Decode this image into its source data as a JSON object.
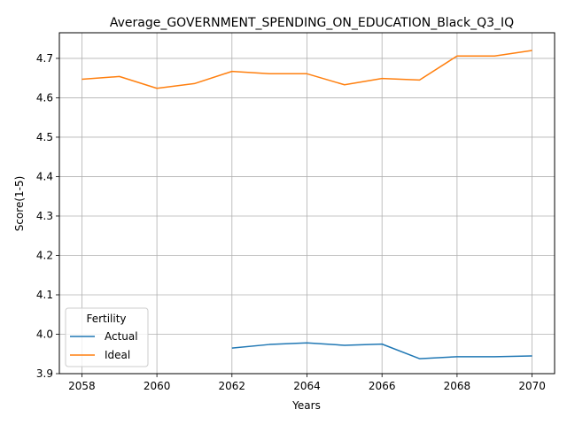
{
  "chart_data": {
    "type": "line",
    "title": "Average_GOVERNMENT_SPENDING_ON_EDUCATION_Black_Q3_IQ",
    "xlabel": "Years",
    "ylabel": "Score(1-5)",
    "xlim": [
      2057.4,
      2070.6
    ],
    "ylim": [
      3.9,
      4.765
    ],
    "xticks": [
      2058,
      2060,
      2062,
      2064,
      2066,
      2068,
      2070
    ],
    "yticks": [
      3.9,
      4.0,
      4.1,
      4.2,
      4.3,
      4.4,
      4.5,
      4.6,
      4.7
    ],
    "xtick_labels": [
      "2058",
      "2060",
      "2062",
      "2064",
      "2066",
      "2068",
      "2070"
    ],
    "ytick_labels": [
      "3.9",
      "4.0",
      "4.1",
      "4.2",
      "4.3",
      "4.4",
      "4.5",
      "4.6",
      "4.7"
    ],
    "grid": true,
    "legend": {
      "title": "Fertility",
      "position": "lower-left"
    },
    "series": [
      {
        "name": "Actual",
        "color": "#1f77b4",
        "x": [
          2062,
          2063,
          2064,
          2065,
          2066,
          2067,
          2068,
          2069,
          2070
        ],
        "y": [
          3.965,
          3.974,
          3.978,
          3.972,
          3.975,
          3.938,
          3.943,
          3.943,
          3.945
        ]
      },
      {
        "name": "Ideal",
        "color": "#ff7f0e",
        "x": [
          2058,
          2059,
          2060,
          2061,
          2062,
          2063,
          2064,
          2065,
          2066,
          2067,
          2068,
          2069,
          2070
        ],
        "y": [
          4.647,
          4.654,
          4.624,
          4.636,
          4.667,
          4.661,
          4.661,
          4.633,
          4.649,
          4.645,
          4.706,
          4.706,
          4.72
        ]
      }
    ]
  }
}
